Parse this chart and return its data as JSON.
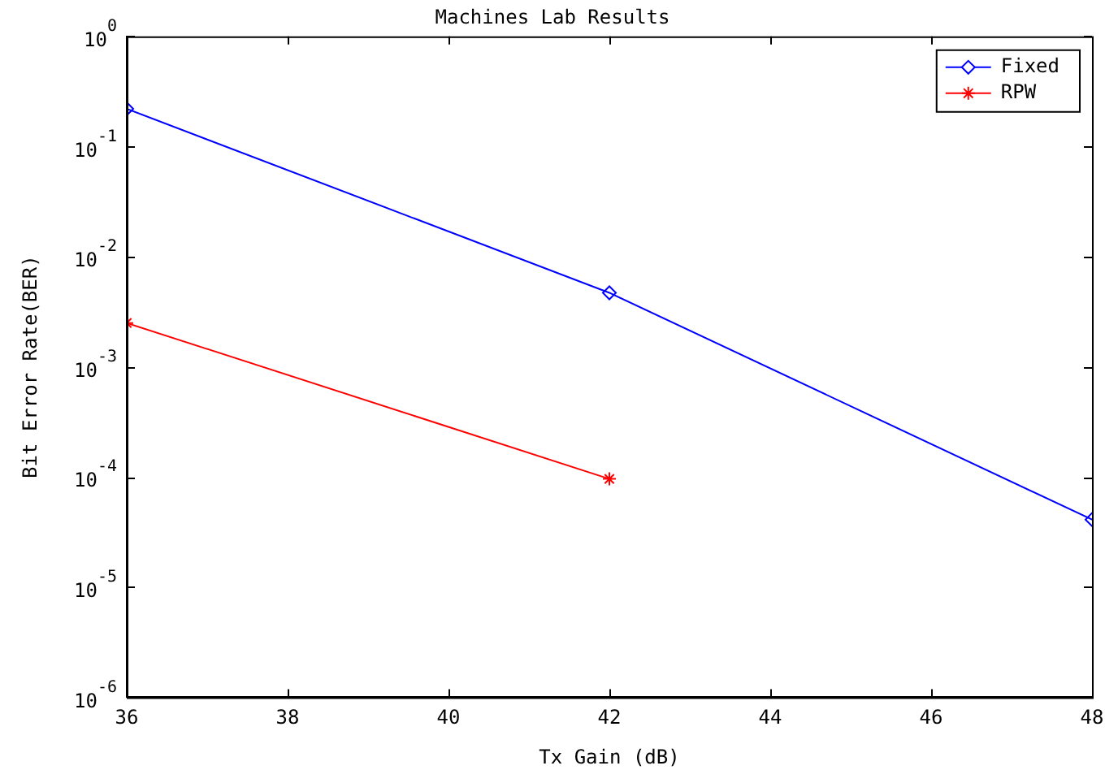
{
  "chart_data": {
    "type": "line",
    "title": "Machines Lab Results",
    "xlabel": "Tx Gain (dB)",
    "ylabel": "Bit Error Rate(BER)",
    "x": [
      36,
      42,
      48
    ],
    "series": [
      {
        "name": "Fixed",
        "color": "#0000ff",
        "marker": "diamond",
        "values": [
          0.22,
          0.0047,
          4.1e-05
        ]
      },
      {
        "name": "RPW",
        "color": "#ff0000",
        "marker": "cross",
        "x": [
          36,
          42
        ],
        "values": [
          0.0025,
          9.6e-05
        ]
      }
    ],
    "log": "y",
    "xlim": [
      36,
      48
    ],
    "xticks": [
      36,
      38,
      40,
      42,
      44,
      46,
      48
    ],
    "ylim": [
      1e-06,
      1
    ],
    "yticks": [
      {
        "value": 1e-06,
        "label": "10$^{-6}$"
      },
      {
        "value": 1e-05,
        "label": "10$^{-5}$"
      },
      {
        "value": 0.0001,
        "label": "10$^{-4}$"
      },
      {
        "value": 0.001,
        "label": "10$^{-3}$"
      },
      {
        "value": 0.01,
        "label": "10$^{-2}$"
      },
      {
        "value": 0.1,
        "label": "10$^{-1}$"
      },
      {
        "value": 1,
        "label": "10$^{0}$"
      }
    ],
    "grid": false,
    "legend": "top right",
    "line_style": "solid"
  }
}
